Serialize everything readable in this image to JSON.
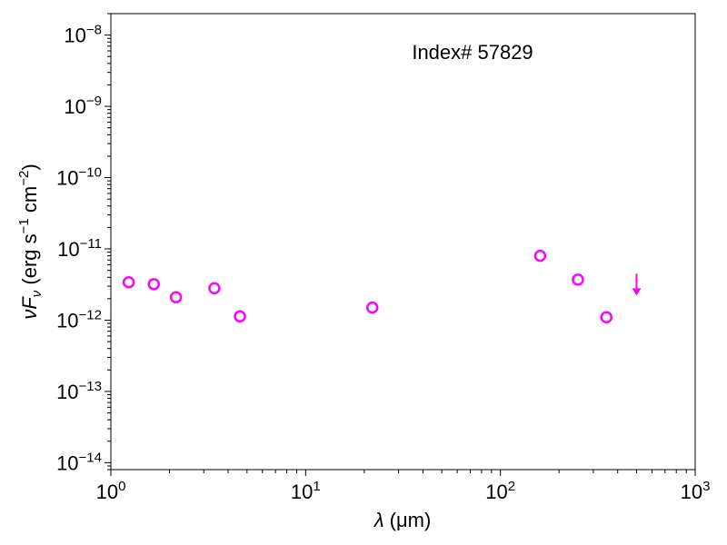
{
  "chart_data": {
    "type": "scatter",
    "xscale": "log",
    "yscale": "log",
    "xlim": [
      1,
      1000
    ],
    "ylim": [
      8e-15,
      2e-08
    ],
    "xlabel": {
      "symbol": "λ",
      "unit": "(μm)"
    },
    "ylabel": {
      "symbol": "νF",
      "sub": "ν",
      "text": "(erg s",
      "exp1": "−1",
      "mid": " cm",
      "exp2": "−2",
      "end": ")"
    },
    "xticks": [
      {
        "value": 1,
        "base": "10",
        "exp": "0"
      },
      {
        "value": 10,
        "base": "10",
        "exp": "1"
      },
      {
        "value": 100,
        "base": "10",
        "exp": "2"
      },
      {
        "value": 1000,
        "base": "10",
        "exp": "3"
      }
    ],
    "yticks": [
      {
        "value": 1e-14,
        "base": "10",
        "exp": "−14"
      },
      {
        "value": 1e-13,
        "base": "10",
        "exp": "−13"
      },
      {
        "value": 1e-12,
        "base": "10",
        "exp": "−12"
      },
      {
        "value": 1e-11,
        "base": "10",
        "exp": "−11"
      },
      {
        "value": 1e-10,
        "base": "10",
        "exp": "−10"
      },
      {
        "value": 1e-09,
        "base": "10",
        "exp": "−9"
      },
      {
        "value": 1e-08,
        "base": "10",
        "exp": "−8"
      }
    ],
    "annotation": "Index# 57829",
    "color": "#ff00ff",
    "points": [
      {
        "x": 1.235,
        "y": 3.4e-12
      },
      {
        "x": 1.662,
        "y": 3.2e-12
      },
      {
        "x": 2.159,
        "y": 2.1e-12
      },
      {
        "x": 3.4,
        "y": 2.8e-12
      },
      {
        "x": 4.6,
        "y": 1.13e-12
      },
      {
        "x": 22,
        "y": 1.5e-12
      },
      {
        "x": 160,
        "y": 8e-12
      },
      {
        "x": 250,
        "y": 3.7e-12
      },
      {
        "x": 350,
        "y": 1.1e-12
      }
    ],
    "upper_limits": [
      {
        "x": 500,
        "y": 2.8e-12
      }
    ]
  }
}
